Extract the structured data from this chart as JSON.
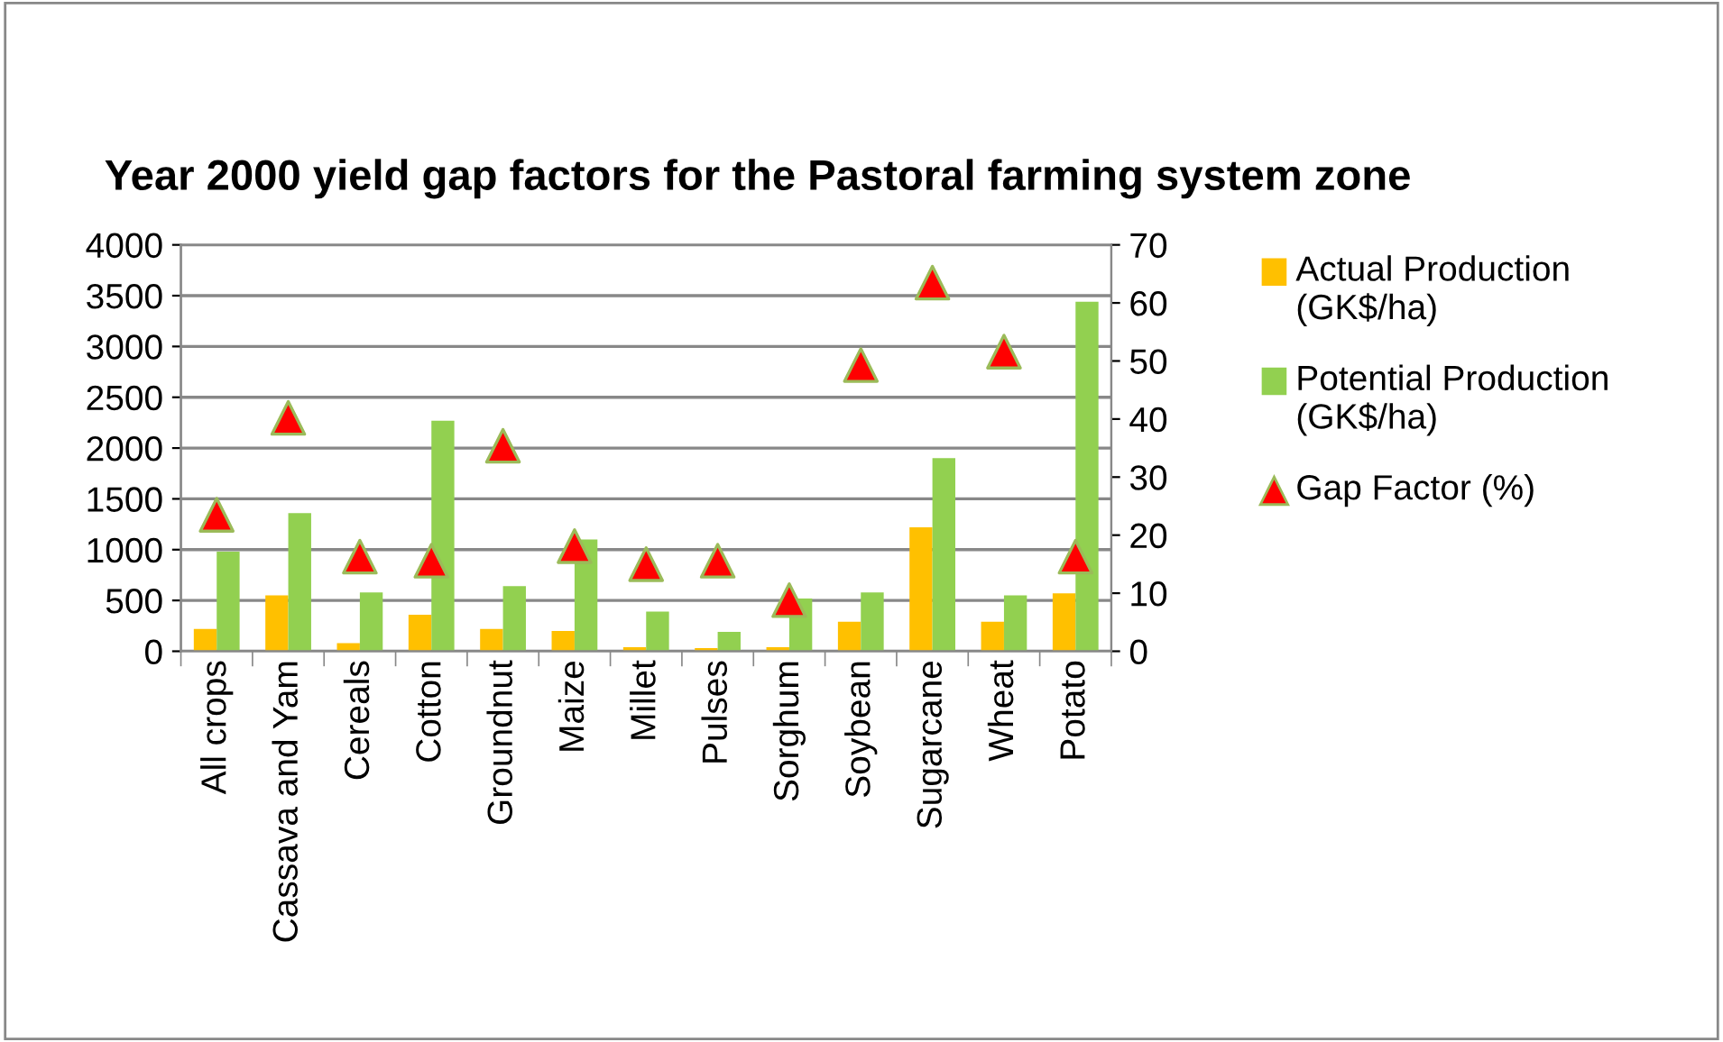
{
  "chart_data": {
    "type": "bar",
    "title": "Year 2000 yield gap factors for the Pastoral farming system zone",
    "categories": [
      "All crops",
      "Cassava and Yam",
      "Cereals",
      "Cotton",
      "Groundnut",
      "Maize",
      "Millet",
      "Pulses",
      "Sorghum",
      "Soybean",
      "Sugarcane",
      "Wheat",
      "Potato"
    ],
    "series": [
      {
        "name": "Actual Production (GK$/ha)",
        "color": "#ffc000",
        "values": [
          220,
          550,
          80,
          360,
          220,
          200,
          40,
          30,
          40,
          290,
          1220,
          290,
          570
        ]
      },
      {
        "name": "Potential Production (GK$/ha)",
        "color": "#92d050",
        "values": [
          980,
          1360,
          580,
          2270,
          640,
          1100,
          390,
          190,
          520,
          580,
          1900,
          550,
          3440
        ]
      },
      {
        "name": "Gap Factor (%)",
        "type": "scatter",
        "axis": "y2",
        "color": "#ff0000",
        "values": [
          23.5,
          40.2,
          16.3,
          15.6,
          35.4,
          18.1,
          15.0,
          15.6,
          8.8,
          49.3,
          63.5,
          51.6,
          16.3
        ]
      }
    ],
    "ylim": [
      0,
      4000
    ],
    "yticks": [
      0,
      500,
      1000,
      1500,
      2000,
      2500,
      3000,
      3500,
      4000
    ],
    "y2lim": [
      0,
      70
    ],
    "y2ticks": [
      0,
      10,
      20,
      30,
      40,
      50,
      60,
      70
    ],
    "grid": "y",
    "legend": "right",
    "marker": "triangle"
  }
}
